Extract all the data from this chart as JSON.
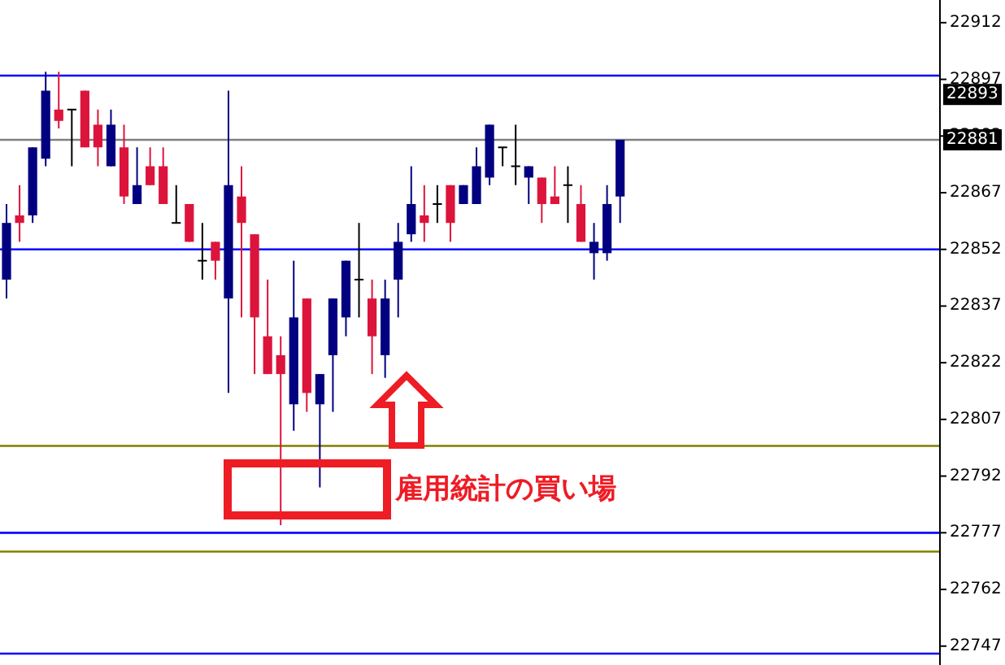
{
  "chart_data": {
    "type": "candlestick",
    "categories": [
      null,
      null,
      null,
      null,
      null,
      null,
      null,
      null,
      null,
      null,
      null,
      null,
      null,
      null,
      null,
      null,
      null,
      null,
      null,
      null,
      null,
      null,
      null,
      null,
      null,
      null,
      null,
      null,
      null,
      null,
      null,
      null,
      null,
      null,
      null,
      null,
      null,
      null,
      null,
      null,
      null,
      null,
      null,
      null,
      null,
      null,
      null,
      null,
      null,
      null,
      null,
      null,
      null,
      null,
      null,
      null,
      null,
      null,
      null,
      null,
      null,
      null,
      null,
      null,
      null,
      null,
      null,
      null,
      null,
      null,
      null,
      null
    ],
    "ohlc": [
      [
        22844,
        22864,
        22839,
        22859
      ],
      [
        22861,
        22869,
        22854,
        22859
      ],
      [
        22861,
        22879,
        22859,
        22879
      ],
      [
        22876,
        22899,
        22874,
        22894
      ],
      [
        22889,
        22899,
        22884,
        22886
      ],
      [
        22889,
        22889,
        22874,
        22889
      ],
      [
        22894,
        22894,
        22879,
        22879
      ],
      [
        22885,
        22889,
        22874,
        22879
      ],
      [
        22874,
        22889,
        22874,
        22885
      ],
      [
        22879,
        22885,
        22864,
        22866
      ],
      [
        22864,
        22879,
        22864,
        22869
      ],
      [
        22874,
        22879,
        22869,
        22869
      ],
      [
        22874,
        22879,
        22864,
        22864
      ],
      [
        22859,
        22869,
        22859,
        22859
      ],
      [
        22864,
        22864,
        22854,
        22854
      ],
      [
        22849,
        22859,
        22844,
        22849
      ],
      [
        22854,
        22854,
        22844,
        22849
      ],
      [
        22839,
        22894,
        22814,
        22869
      ],
      [
        22866,
        22874,
        22834,
        22859
      ],
      [
        22856,
        22856,
        22819,
        22834
      ],
      [
        22829,
        22844,
        22819,
        22819
      ],
      [
        22824,
        22829,
        22779,
        22819
      ],
      [
        22811,
        22849,
        22804,
        22834
      ],
      [
        22839,
        22839,
        22809,
        22814
      ],
      [
        22811,
        22819,
        22789,
        22819
      ],
      [
        22824,
        22839,
        22809,
        22839
      ],
      [
        22834,
        22849,
        22829,
        22849
      ],
      [
        22844,
        22859,
        22834,
        22844
      ],
      [
        22839,
        22844,
        22819,
        22829
      ],
      [
        22824,
        22844,
        22818,
        22839
      ],
      [
        22844,
        22859,
        22834,
        22854
      ],
      [
        22856,
        22874,
        22854,
        22864
      ],
      [
        22861,
        22869,
        22854,
        22859
      ],
      [
        22864,
        22869,
        22859,
        22864
      ],
      [
        22869,
        22869,
        22854,
        22859
      ],
      [
        22864,
        22869,
        22864,
        22869
      ],
      [
        22864,
        22879,
        22864,
        22874
      ],
      [
        22871,
        22885,
        22869,
        22885
      ],
      [
        22879,
        22879,
        22874,
        22879
      ],
      [
        22874,
        22885,
        22869,
        22874
      ],
      [
        22871,
        22874,
        22864,
        22874
      ],
      [
        22871,
        22871,
        22859,
        22864
      ],
      [
        22866,
        22874,
        22864,
        22864
      ],
      [
        22869,
        22874,
        22859,
        22869
      ],
      [
        22864,
        22869,
        22854,
        22854
      ],
      [
        22851,
        22859,
        22844,
        22854
      ],
      [
        22851,
        22869,
        22849,
        22864
      ],
      [
        22866,
        22881,
        22859,
        22881
      ],
      null,
      null,
      null,
      null,
      null,
      null,
      null,
      null,
      null,
      null,
      null,
      null,
      null,
      null,
      null,
      null,
      null,
      null,
      null,
      null,
      null,
      null,
      null,
      null
    ],
    "colors": [
      "#000080",
      "#dc143c",
      "#000080",
      "#000080",
      "#dc143c",
      "#000000",
      "#dc143c",
      "#dc143c",
      "#000080",
      "#dc143c",
      "#000080",
      "#dc143c",
      "#dc143c",
      "#000000",
      "#dc143c",
      "#000000",
      "#dc143c",
      "#000080",
      "#dc143c",
      "#dc143c",
      "#dc143c",
      "#dc143c",
      "#000080",
      "#dc143c",
      "#000080",
      "#000080",
      "#000080",
      "#000000",
      "#dc143c",
      "#000080",
      "#000080",
      "#000080",
      "#dc143c",
      "#000000",
      "#dc143c",
      "#000080",
      "#000080",
      "#000080",
      "#000000",
      "#000000",
      "#000080",
      "#dc143c",
      "#dc143c",
      "#000000",
      "#dc143c",
      "#000080",
      "#000080",
      "#000080",
      null,
      null,
      null,
      null,
      null,
      null,
      null,
      null,
      null,
      null,
      null,
      null,
      null,
      null,
      null,
      null,
      null,
      null,
      null,
      null,
      null,
      null,
      null,
      null
    ],
    "ylim": [
      22742,
      22918
    ],
    "yticks": [
      22747,
      22762,
      22777,
      22792,
      22807,
      22822,
      22837,
      22852,
      22867,
      22882,
      22897,
      22912
    ],
    "ref_lines": [
      {
        "axis": "y",
        "value": 22898,
        "color": "#0000ff"
      },
      {
        "axis": "y",
        "value": 22881,
        "color": "#808080",
        "label": "22881"
      },
      {
        "axis": "y",
        "value": 22852,
        "color": "#0000ff"
      },
      {
        "axis": "y",
        "value": 22800,
        "color": "#808000"
      },
      {
        "axis": "y",
        "value": 22777,
        "color": "#0000ff"
      },
      {
        "axis": "y",
        "value": 22772,
        "color": "#808000"
      },
      {
        "axis": "y",
        "value": 22745,
        "color": "#0000ff"
      }
    ],
    "annotations": [
      "雇用統計の買い場",
      {
        "text": "22893",
        "y": 22893
      }
    ],
    "grid": false
  }
}
